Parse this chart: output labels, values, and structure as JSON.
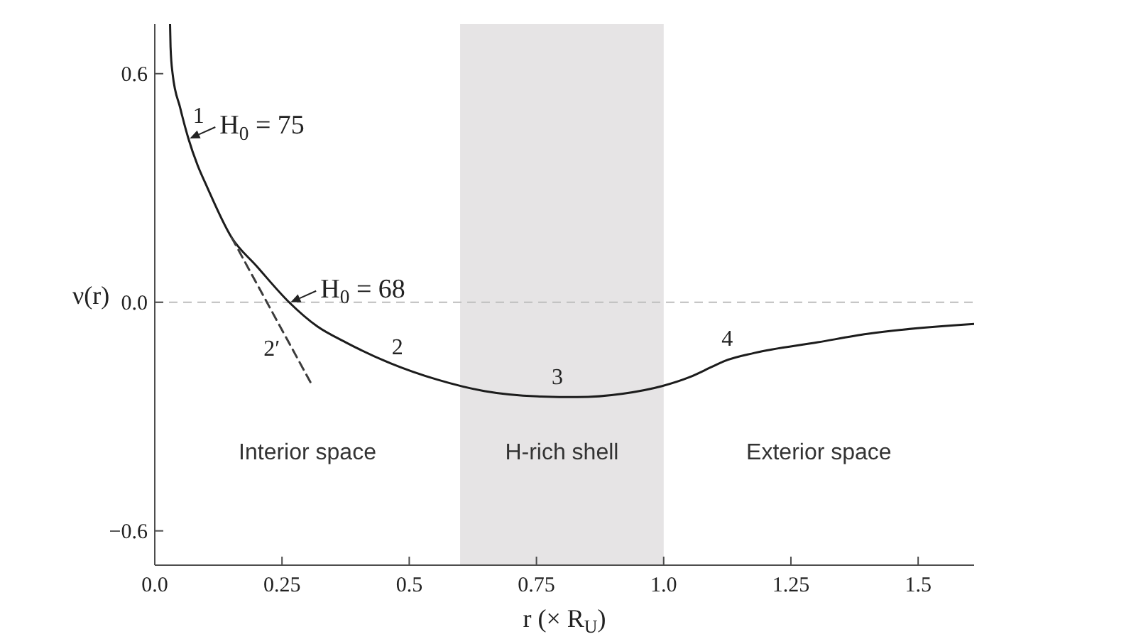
{
  "chart_data": {
    "type": "line",
    "xlabel": "r (× R$_{U}$)",
    "ylabel": "ν(r)",
    "xlim": [
      0,
      1.61
    ],
    "ylim": [
      -0.69,
      0.73
    ],
    "xticks": [
      {
        "value": 0,
        "label": "0.0"
      },
      0.25,
      0.5,
      0.75,
      {
        "value": 1,
        "label": "1.0"
      },
      1.25,
      1.5
    ],
    "yticks": [
      {
        "value": -0.6,
        "label": "−0.6"
      },
      {
        "value": 0,
        "label": "0.0"
      },
      0.6
    ],
    "marker": "none",
    "series": [
      {
        "color": "#1c1c1c",
        "x": [
          0.03,
          0.031,
          0.035,
          0.05,
          0.066,
          0.084,
          0.102,
          0.151,
          0.2,
          0.264,
          0.319,
          0.375,
          0.463,
          0.555,
          0.647,
          0.752,
          0.83,
          0.92,
          0.997,
          1.05,
          1.097,
          1.12,
          1.178,
          1.303,
          1.4,
          1.61
        ],
        "values": [
          0.73,
          0.67,
          0.6,
          0.51,
          0.43,
          0.36,
          0.305,
          0.17,
          0.095,
          0,
          -0.063,
          -0.105,
          -0.16,
          -0.203,
          -0.233,
          -0.247,
          -0.249,
          -0.24,
          -0.22,
          -0.197,
          -0.168,
          -0.154,
          -0.133,
          -0.105,
          -0.083,
          -0.057
        ]
      },
      {
        "color": "#3c3c3c",
        "line_style": "dashed",
        "x": [
          0.151,
          0.306
        ],
        "values": [
          0.17,
          -0.21
        ]
      }
    ],
    "ref_lines": [
      {
        "axis": "y",
        "value": 0,
        "color": "#bdbdbd",
        "line_style": "dashed"
      }
    ],
    "bands": [
      {
        "axis": "x",
        "from": 0.6,
        "to": 1.0,
        "label": "H-rich shell",
        "color": "#e6e4e5"
      }
    ],
    "annotations": [
      {
        "text": "H$_{0}$ = 75",
        "x": 0.066,
        "y": 0.43
      },
      {
        "text": "H$_{0}$ = 68",
        "x": 0.264,
        "y": 0
      },
      {
        "text": "1",
        "x": 0.05,
        "y": 0.51
      },
      {
        "text": "2′",
        "x": 0.269,
        "y": -0.12
      },
      {
        "text": "2",
        "x": 0.463,
        "y": -0.16
      },
      {
        "text": "3",
        "x": 0.752,
        "y": -0.247
      },
      {
        "text": "4",
        "x": 1.097,
        "y": -0.168
      },
      "Interior space",
      "Exterior space"
    ]
  }
}
